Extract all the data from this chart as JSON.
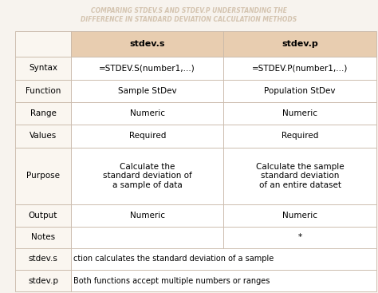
{
  "title_line1": "COMPARING STDEV.S AND STDEV.P UNDERSTANDING THE",
  "title_line2": "DIFFERENCE IN STANDARD DEVIATION CALCULATION METHODS",
  "title_color": "#d4c4b0",
  "bg_color": "#f7f3ee",
  "header_bg": "#e8cdb0",
  "row_bg": "#ffffff",
  "label_bg": "#faf6f0",
  "border_color": "#c8b8a8",
  "col_headers": [
    "",
    "stdev.s",
    "stdev.p"
  ],
  "rows": [
    [
      "Syntax",
      "=STDEV.S(number1,...)",
      "=STDEV.P(number1,...)"
    ],
    [
      "Function",
      "Sample StDev",
      "Population StDev"
    ],
    [
      "Range",
      "Numeric",
      "Numeric"
    ],
    [
      "Values",
      "Required",
      "Required"
    ],
    [
      "Purpose",
      "Calculate the\nstandard deviation of\na sample of data",
      "Calculate the sample\nstandard deviation\nof an entire dataset"
    ],
    [
      "Output",
      "Numeric",
      "Numeric"
    ],
    [
      "Notes",
      "",
      "*"
    ],
    [
      "stdev.s",
      "ction calculates the standard deviation of a sample",
      ""
    ],
    [
      "stdev.p",
      "Both functions accept multiple numbers or ranges",
      ""
    ]
  ],
  "title_fontsize": 5.5,
  "header_fontsize": 8,
  "cell_fontsize": 7.5,
  "note_fontsize": 7.0
}
